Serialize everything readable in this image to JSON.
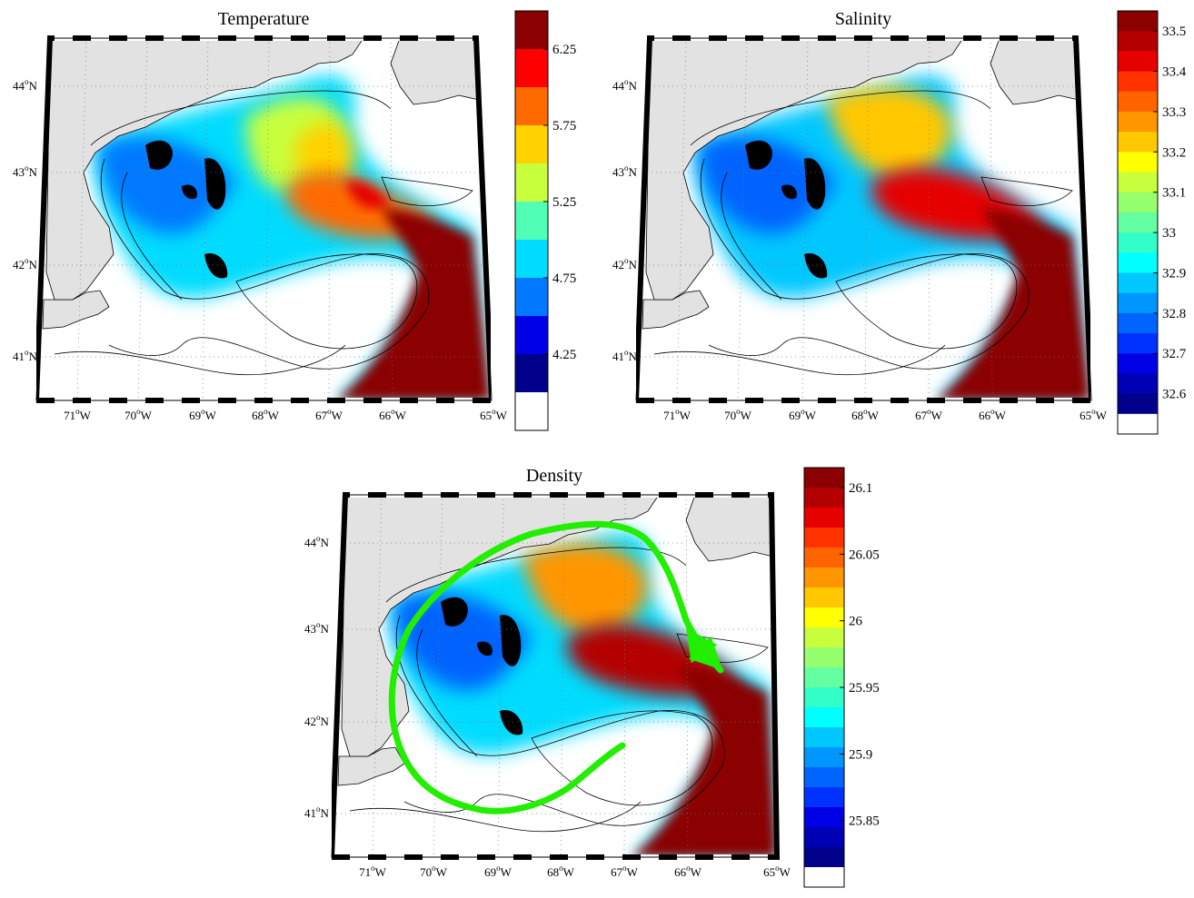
{
  "panels": [
    {
      "key": "temperature",
      "title": "Temperature",
      "lat_labels": [
        "44",
        "43",
        "42",
        "41"
      ],
      "lon_labels": [
        "71",
        "70",
        "69",
        "68",
        "67",
        "66",
        "65"
      ],
      "colorbar_labels": [
        "6.25",
        "5.75",
        "5.25",
        "4.75",
        "4.25"
      ],
      "colorbar_colors": [
        "#8B0000",
        "#FF0000",
        "#FF6A00",
        "#FFD200",
        "#C8FF3C",
        "#50FFB4",
        "#00DCFF",
        "#0078FF",
        "#0000E6",
        "#00008B",
        "#FFFFFF"
      ]
    },
    {
      "key": "salinity",
      "title": "Salinity",
      "lat_labels": [
        "44",
        "43",
        "42",
        "41"
      ],
      "lon_labels": [
        "71",
        "70",
        "69",
        "68",
        "67",
        "66",
        "65"
      ],
      "colorbar_labels": [
        "33.5",
        "33.4",
        "33.3",
        "33.2",
        "33.1",
        "33",
        "32.9",
        "32.8",
        "32.7",
        "32.6"
      ],
      "colorbar_colors": [
        "#8B0000",
        "#B40000",
        "#E60000",
        "#FF3200",
        "#FF6400",
        "#FF9600",
        "#FFC800",
        "#FFFF00",
        "#C8FF3C",
        "#96FF6E",
        "#64FFA0",
        "#32FFC8",
        "#00FFFF",
        "#00C8FF",
        "#0096FF",
        "#0064FF",
        "#0032FF",
        "#0000E6",
        "#0000B4",
        "#00008B",
        "#FFFFFF"
      ]
    },
    {
      "key": "density",
      "title": "Density",
      "lat_labels": [
        "44",
        "43",
        "42",
        "41"
      ],
      "lon_labels": [
        "71",
        "70",
        "69",
        "68",
        "67",
        "66",
        "65"
      ],
      "colorbar_labels": [
        "26.1",
        "26.05",
        "26",
        "25.95",
        "25.9",
        "25.85"
      ],
      "colorbar_colors": [
        "#8B0000",
        "#B40000",
        "#E60000",
        "#FF3200",
        "#FF6400",
        "#FF9600",
        "#FFC800",
        "#FFFF00",
        "#C8FF3C",
        "#96FF6E",
        "#64FFA0",
        "#32FFC8",
        "#00FFFF",
        "#00C8FF",
        "#0096FF",
        "#0064FF",
        "#0032FF",
        "#0000E6",
        "#0000B4",
        "#00008B",
        "#FFFFFF"
      ]
    }
  ],
  "units": {
    "north": "N",
    "west": "W",
    "degree": "o"
  },
  "colors": {
    "land": "#E2E2E2",
    "coastline": "#000000",
    "circulation_arrow": "#22EE00"
  }
}
